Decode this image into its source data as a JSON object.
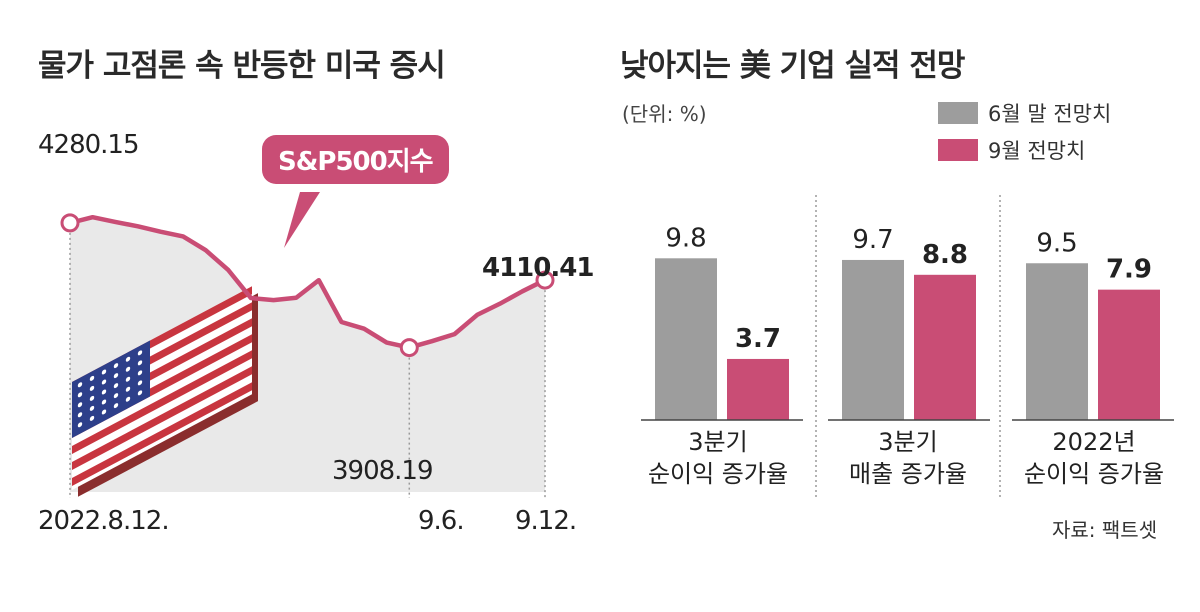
{
  "colors": {
    "accent": "#c94d75",
    "gray_bar": "#9d9d9d",
    "area_fill": "#e9e9e9"
  },
  "left_title": "물가 고점론 속 반등한 미국 증시",
  "right_title": "낮아지는 美 기업 실적 전망",
  "unit_label": "(단위: %)",
  "source": "자료: 팩트셋",
  "callout": "S&P500지수",
  "flag_icon": "us-flag-icon",
  "chart_data": [
    {
      "type": "line",
      "title": "물가 고점론 속 반등한 미국 증시",
      "series": [
        {
          "name": "S&P500지수",
          "values": [
            4280.15,
            4297,
            4283,
            4270,
            4254,
            4240,
            4199,
            4140,
            4057,
            4051,
            4058,
            4110,
            3986,
            3966,
            3925,
            3910,
            3929,
            3950,
            4007,
            4040,
            4077,
            4110.41
          ]
        }
      ],
      "x_tick_labels": [
        "2022.8.12.",
        "9.6.",
        "9.12."
      ],
      "ylim": [
        3600,
        4550
      ],
      "annotations": [
        {
          "label": "4280.15",
          "value": 4280.15
        },
        {
          "label": "3908.19",
          "value": 3908.19
        },
        {
          "label": "4110.41",
          "value": 4110.41
        }
      ],
      "grid": false
    },
    {
      "type": "bar",
      "title": "낮아지는 美 기업 실적 전망",
      "unit": "%",
      "categories": [
        [
          "3분기",
          "순이익 증가율"
        ],
        [
          "3분기",
          "매출 증가율"
        ],
        [
          "2022년",
          "순이익 증가율"
        ]
      ],
      "series": [
        {
          "name": "6월 말 전망치",
          "values": [
            9.8,
            9.7,
            9.5
          ],
          "value_labels": [
            "9.8",
            "9.7",
            "9.5"
          ]
        },
        {
          "name": "9월 전망치",
          "values": [
            3.7,
            8.8,
            7.9
          ],
          "value_labels": [
            "3.7",
            "8.8",
            "7.9"
          ]
        }
      ],
      "ylim": [
        0,
        12
      ],
      "legend": "top-right"
    }
  ]
}
